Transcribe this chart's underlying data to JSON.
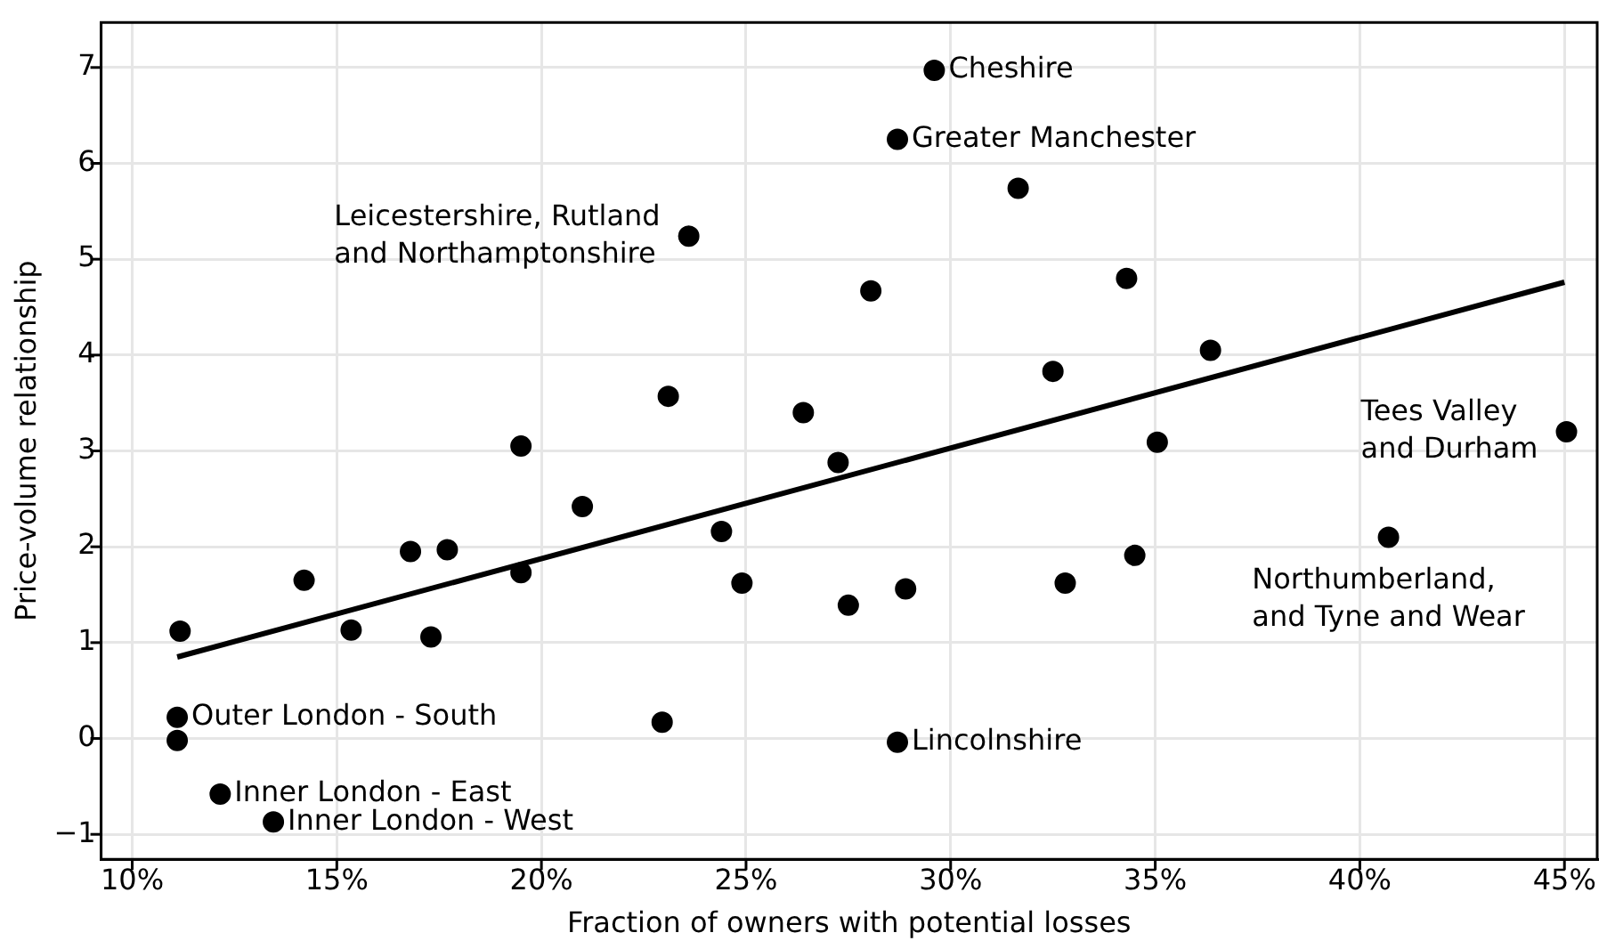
{
  "chart_data": {
    "type": "scatter",
    "xlabel": "Fraction of owners with potential losses",
    "ylabel": "Price-volume relationship",
    "xlim": [
      9.24,
      45.8
    ],
    "ylim": [
      -1.26,
      7.47
    ],
    "xticks": [
      {
        "value": 10,
        "label": "10%"
      },
      {
        "value": 15,
        "label": "15%"
      },
      {
        "value": 20,
        "label": "20%"
      },
      {
        "value": 25,
        "label": "25%"
      },
      {
        "value": 30,
        "label": "30%"
      },
      {
        "value": 35,
        "label": "35%"
      },
      {
        "value": 40,
        "label": "40%"
      },
      {
        "value": 45,
        "label": "45%"
      }
    ],
    "yticks": [
      {
        "value": -1,
        "label": "−1"
      },
      0,
      1,
      2,
      3,
      4,
      5,
      6,
      7
    ],
    "grid": true,
    "legend": false,
    "marker": "circle",
    "series": [
      {
        "color": "#000000",
        "x": [
          11.17,
          11.1,
          11.1,
          12.15,
          13.45,
          14.2,
          15.35,
          16.8,
          17.3,
          17.7,
          19.5,
          19.5,
          21.0,
          22.95,
          23.1,
          23.6,
          24.4,
          24.9,
          26.4,
          27.25,
          27.5,
          28.05,
          28.7,
          28.7,
          28.9,
          29.6,
          31.65,
          32.5,
          32.8,
          34.3,
          34.5,
          35.05,
          36.35,
          40.7,
          45.05
        ],
        "values": [
          1.12,
          0.22,
          -0.02,
          -0.58,
          -0.87,
          1.65,
          1.13,
          1.95,
          1.06,
          1.97,
          3.05,
          1.73,
          2.42,
          0.17,
          3.57,
          5.24,
          2.16,
          1.62,
          3.4,
          2.88,
          1.39,
          4.67,
          6.25,
          -0.04,
          1.56,
          6.97,
          5.74,
          3.83,
          1.62,
          4.8,
          1.91,
          3.09,
          4.05,
          2.1,
          3.2
        ]
      },
      {
        "type": "line",
        "color": "#000000",
        "x": [
          11.1,
          45.0
        ],
        "values": [
          0.85,
          4.76
        ],
        "marker": "none",
        "line_style": "solid"
      }
    ],
    "annotations": [
      {
        "text": "Cheshire",
        "x": 29.6,
        "y": 6.97
      },
      {
        "text": "Greater Manchester",
        "x": 28.7,
        "y": 6.25
      },
      {
        "text": "Leicestershire, Rutland\nand Northamptonshire",
        "x": 23.6,
        "y": 5.24
      },
      {
        "text": "Outer London - South",
        "x": 11.1,
        "y": 0.22
      },
      {
        "text": "Inner London - East",
        "x": 12.15,
        "y": -0.58
      },
      {
        "text": "Inner London - West",
        "x": 13.45,
        "y": -0.87
      },
      {
        "text": "Lincolnshire",
        "x": 28.7,
        "y": -0.04
      },
      {
        "text": "Tees Valley\nand Durham",
        "x": 45.05,
        "y": 3.2
      },
      {
        "text": "Northumberland,\nand Tyne and Wear",
        "x": 40.7,
        "y": 2.1
      }
    ]
  }
}
